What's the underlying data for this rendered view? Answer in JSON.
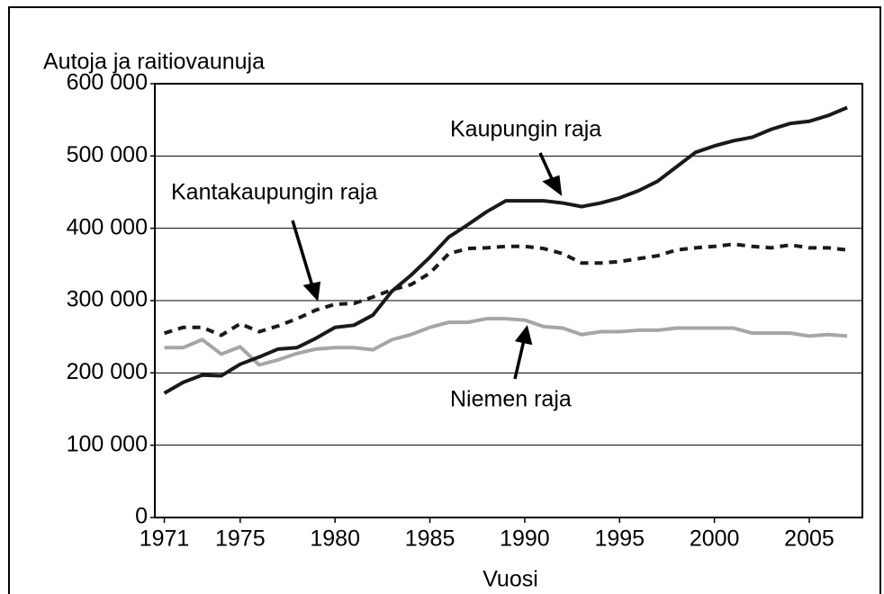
{
  "chart_data": {
    "type": "line",
    "y_label": "Autoja ja raitiovaunuja",
    "x_label": "Vuosi",
    "x": [
      1971,
      1972,
      1973,
      1974,
      1975,
      1976,
      1977,
      1978,
      1979,
      1980,
      1981,
      1982,
      1983,
      1984,
      1985,
      1986,
      1987,
      1988,
      1989,
      1990,
      1991,
      1992,
      1993,
      1994,
      1995,
      1996,
      1997,
      1998,
      1999,
      2000,
      2001,
      2002,
      2003,
      2004,
      2005,
      2006,
      2007
    ],
    "series": [
      {
        "name": "Kaupungin raja",
        "color": "#1a1a1a",
        "dash": "solid",
        "values": [
          172000,
          187000,
          197000,
          196000,
          212000,
          222000,
          233000,
          235000,
          248000,
          263000,
          266000,
          280000,
          313000,
          335000,
          360000,
          388000,
          405000,
          423000,
          438000,
          438000,
          438000,
          435000,
          430000,
          435000,
          442000,
          452000,
          465000,
          485000,
          505000,
          514000,
          521000,
          526000,
          537000,
          545000,
          548000,
          556000,
          567000
        ]
      },
      {
        "name": "Kantakaupungin raja",
        "color": "#1a1a1a",
        "dash": "dashed",
        "values": [
          255000,
          263000,
          263000,
          252000,
          268000,
          257000,
          265000,
          275000,
          287000,
          295000,
          296000,
          305000,
          315000,
          322000,
          338000,
          365000,
          372000,
          373000,
          375000,
          375000,
          372000,
          365000,
          352000,
          352000,
          354000,
          358000,
          362000,
          370000,
          373000,
          375000,
          378000,
          375000,
          373000,
          377000,
          373000,
          373000,
          370000
        ]
      },
      {
        "name": "Niemen raja",
        "color": "#a6a6a6",
        "dash": "solid",
        "values": [
          235000,
          235000,
          246000,
          226000,
          236000,
          211000,
          218000,
          227000,
          233000,
          235000,
          235000,
          232000,
          246000,
          253000,
          263000,
          270000,
          270000,
          275000,
          275000,
          273000,
          264000,
          262000,
          253000,
          257000,
          257000,
          259000,
          259000,
          262000,
          262000,
          262000,
          262000,
          255000,
          255000,
          255000,
          251000,
          253000,
          251000
        ]
      }
    ],
    "xlim": [
      1970.5,
      2007.8
    ],
    "xticks": [
      1971,
      1975,
      1980,
      1985,
      1990,
      1995,
      2000,
      2005
    ],
    "ylim": [
      0,
      600000
    ],
    "yticks": [
      0,
      {
        "value": 100000,
        "label": "100 000"
      },
      {
        "value": 200000,
        "label": "200 000"
      },
      {
        "value": 300000,
        "label": "300 000"
      },
      {
        "value": 400000,
        "label": "400 000"
      },
      {
        "value": 500000,
        "label": "500 000"
      },
      {
        "value": 600000,
        "label": "600 000"
      }
    ],
    "grid": true
  }
}
